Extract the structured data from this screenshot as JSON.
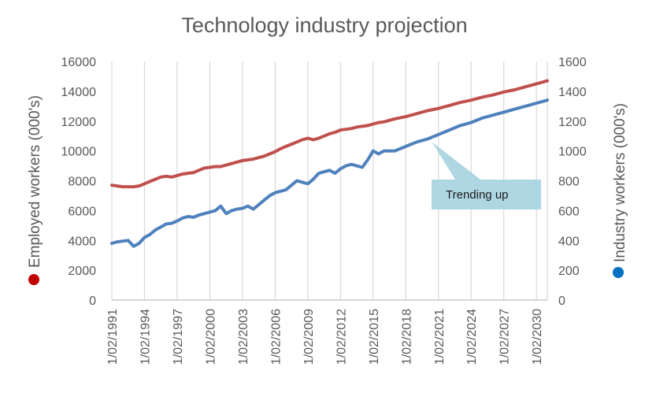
{
  "chart_data": {
    "type": "line",
    "title": "Technology industry projection",
    "ylabel": "Employed workers (000's)",
    "y2label": "Industry workers (000's)",
    "ylim": [
      0,
      16000
    ],
    "y2lim": [
      0,
      1600
    ],
    "y_ticks": [
      0,
      2000,
      4000,
      6000,
      8000,
      10000,
      12000,
      14000,
      16000
    ],
    "y2_ticks": [
      0,
      200,
      400,
      600,
      800,
      1000,
      1200,
      1400,
      1600
    ],
    "x_tick_labels": [
      "1/02/1991",
      "1/02/1994",
      "1/02/1997",
      "1/02/2000",
      "1/02/2003",
      "1/02/2006",
      "1/02/2009",
      "1/02/2012",
      "1/02/2015",
      "1/02/2018",
      "1/02/2021",
      "1/02/2024",
      "1/02/2027",
      "1/02/2030"
    ],
    "x_tick_years": [
      1991,
      1994,
      1997,
      2000,
      2003,
      2006,
      2009,
      2012,
      2015,
      2018,
      2021,
      2024,
      2027,
      2030
    ],
    "xlim": [
      1991,
      2031
    ],
    "grid": "vertical",
    "series": [
      {
        "axis": "left",
        "color": "#c0504d",
        "x": [
          1991,
          1991.5,
          1992,
          1992.5,
          1993,
          1993.5,
          1994,
          1994.5,
          1995,
          1995.5,
          1996,
          1996.5,
          1997,
          1997.5,
          1998,
          1998.5,
          1999,
          1999.5,
          2000,
          2000.5,
          2001,
          2001.5,
          2002,
          2002.5,
          2003,
          2003.5,
          2004,
          2004.5,
          2005,
          2005.5,
          2006,
          2006.5,
          2007,
          2007.5,
          2008,
          2008.5,
          2009,
          2009.5,
          2010,
          2010.5,
          2011,
          2011.5,
          2012,
          2012.5,
          2013,
          2013.5,
          2014,
          2014.5,
          2015,
          2015.5,
          2016,
          2017,
          2018,
          2019,
          2020,
          2021,
          2022,
          2023,
          2024,
          2025,
          2026,
          2027,
          2028,
          2029,
          2030,
          2031
        ],
        "values": [
          7700,
          7650,
          7600,
          7600,
          7600,
          7650,
          7800,
          7950,
          8100,
          8250,
          8300,
          8250,
          8350,
          8450,
          8500,
          8550,
          8700,
          8850,
          8900,
          8950,
          8950,
          9050,
          9150,
          9250,
          9350,
          9400,
          9450,
          9550,
          9650,
          9800,
          9950,
          10150,
          10300,
          10450,
          10600,
          10750,
          10850,
          10750,
          10850,
          11000,
          11150,
          11250,
          11400,
          11450,
          11500,
          11600,
          11650,
          11700,
          11800,
          11900,
          11950,
          12150,
          12300,
          12500,
          12700,
          12850,
          13050,
          13250,
          13400,
          13600,
          13750,
          13950,
          14100,
          14300,
          14500,
          14700
        ]
      },
      {
        "axis": "right",
        "color": "#4f81bd",
        "x": [
          1991,
          1991.5,
          1992,
          1992.5,
          1993,
          1993.5,
          1994,
          1994.5,
          1995,
          1995.5,
          1996,
          1996.5,
          1997,
          1997.5,
          1998,
          1998.5,
          1999,
          1999.5,
          2000,
          2000.5,
          2001,
          2001.5,
          2002,
          2002.5,
          2003,
          2003.5,
          2004,
          2004.5,
          2005,
          2005.5,
          2006,
          2006.5,
          2007,
          2007.5,
          2008,
          2008.5,
          2009,
          2009.5,
          2010,
          2010.5,
          2011,
          2011.5,
          2012,
          2012.5,
          2013,
          2013.5,
          2014,
          2014.5,
          2015,
          2015.5,
          2016,
          2017,
          2018,
          2019,
          2020,
          2021,
          2022,
          2023,
          2024,
          2025,
          2026,
          2027,
          2028,
          2029,
          2030,
          2031
        ],
        "values": [
          380,
          390,
          395,
          400,
          360,
          380,
          420,
          440,
          470,
          490,
          510,
          515,
          530,
          550,
          560,
          555,
          570,
          580,
          590,
          600,
          630,
          580,
          600,
          610,
          615,
          630,
          610,
          640,
          670,
          700,
          720,
          730,
          740,
          770,
          800,
          790,
          780,
          810,
          850,
          860,
          870,
          850,
          880,
          900,
          910,
          900,
          890,
          940,
          1000,
          980,
          1000,
          1000,
          1030,
          1060,
          1080,
          1110,
          1140,
          1170,
          1190,
          1220,
          1240,
          1260,
          1280,
          1300,
          1320,
          1340
        ]
      }
    ],
    "annotation": {
      "text": "Trending up",
      "point_x": 2020.4,
      "point_y2": 1060
    },
    "legend_markers": {
      "left_color": "#c00000",
      "right_color": "#0070c0"
    }
  }
}
